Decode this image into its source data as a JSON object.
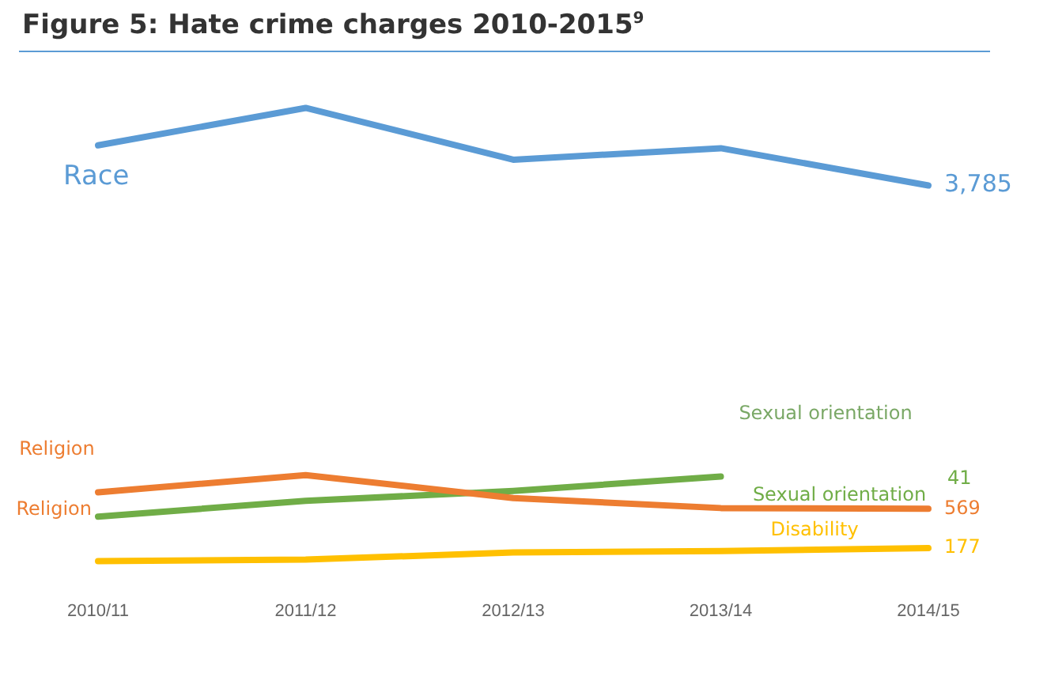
{
  "chart_data": {
    "type": "line",
    "title": "Figure 5: Hate crime charges 2010-2015$^{9}$",
    "categories": [
      "2010/11",
      "2011/12",
      "2012/13",
      "2013/14",
      "2014/15"
    ],
    "series": [
      {
        "name": "Race",
        "color": "#5b9bd5",
        "values": [
          4184,
          4556,
          4041,
          4155,
          3785
        ],
        "value_labels": [
          null,
          null,
          null,
          null,
          "3,785"
        ]
      },
      {
        "name": "Religion",
        "color": "#ed7d31",
        "values": [
          733,
          904,
          676,
          576,
          569
        ],
        "value_labels": [
          null,
          null,
          null,
          null,
          "569"
        ]
      },
      {
        "name": "Sexual orientation",
        "color": "#70ad47",
        "values": [
          491,
          647,
          747,
          890,
          null
        ]
      },
      {
        "name": "Disability",
        "color": "#ffc000",
        "values": [
          48,
          63,
          134,
          148,
          177
        ],
        "value_labels": [
          null,
          null,
          null,
          null,
          "177"
        ]
      }
    ],
    "annotations": [
      "Sexual orientation",
      {
        "text": "Religion",
        "x": "2010/11",
        "y": 491
      },
      "41"
    ],
    "tick_labels": "x",
    "grid": false,
    "legend": false,
    "marker": "none",
    "line_style": "solid"
  }
}
